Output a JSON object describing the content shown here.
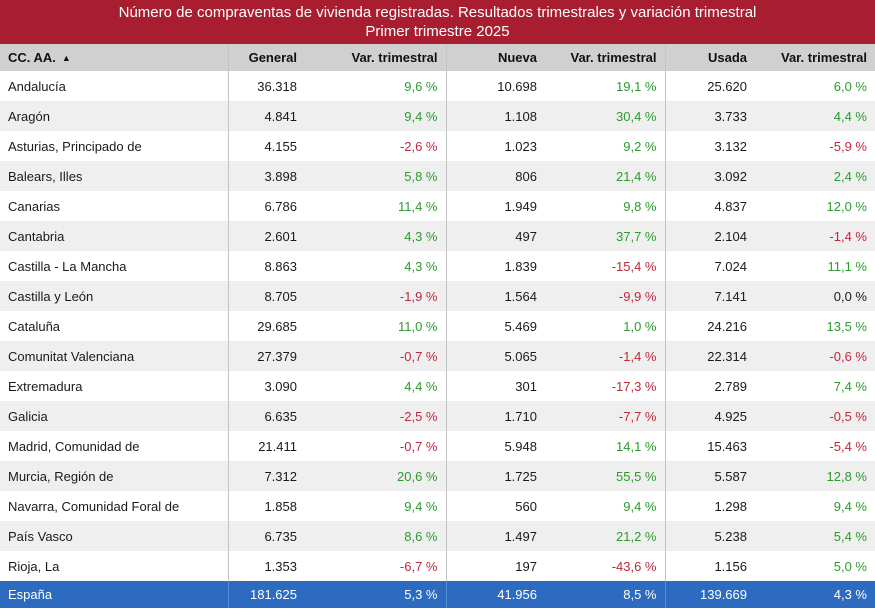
{
  "title": {
    "line1": "Número de compraventas de vivienda registradas. Resultados trimestrales  y variación trimestral",
    "line2": "Primer trimestre 2025"
  },
  "header": {
    "region": "CC. AA.",
    "general": "General",
    "var1": "Var. trimestral",
    "nueva": "Nueva",
    "var2": "Var. trimestral",
    "usada": "Usada",
    "var3": "Var. trimestral"
  },
  "rows": [
    {
      "region": "Andalucía",
      "general": "36.318",
      "var_general": "9,6 %",
      "nueva": "10.698",
      "var_nueva": "19,1 %",
      "usada": "25.620",
      "var_usada": "6,0 %"
    },
    {
      "region": "Aragón",
      "general": "4.841",
      "var_general": "9,4 %",
      "nueva": "1.108",
      "var_nueva": "30,4 %",
      "usada": "3.733",
      "var_usada": "4,4 %"
    },
    {
      "region": "Asturias, Principado de",
      "general": "4.155",
      "var_general": "-2,6 %",
      "nueva": "1.023",
      "var_nueva": "9,2 %",
      "usada": "3.132",
      "var_usada": "-5,9 %"
    },
    {
      "region": "Balears, Illes",
      "general": "3.898",
      "var_general": "5,8 %",
      "nueva": "806",
      "var_nueva": "21,4 %",
      "usada": "3.092",
      "var_usada": "2,4 %"
    },
    {
      "region": "Canarias",
      "general": "6.786",
      "var_general": "11,4 %",
      "nueva": "1.949",
      "var_nueva": "9,8 %",
      "usada": "4.837",
      "var_usada": "12,0 %"
    },
    {
      "region": "Cantabria",
      "general": "2.601",
      "var_general": "4,3 %",
      "nueva": "497",
      "var_nueva": "37,7 %",
      "usada": "2.104",
      "var_usada": "-1,4 %"
    },
    {
      "region": "Castilla - La Mancha",
      "general": "8.863",
      "var_general": "4,3 %",
      "nueva": "1.839",
      "var_nueva": "-15,4 %",
      "usada": "7.024",
      "var_usada": "11,1 %"
    },
    {
      "region": "Castilla y León",
      "general": "8.705",
      "var_general": "-1,9 %",
      "nueva": "1.564",
      "var_nueva": "-9,9 %",
      "usada": "7.141",
      "var_usada": "0,0 %"
    },
    {
      "region": "Cataluña",
      "general": "29.685",
      "var_general": "11,0 %",
      "nueva": "5.469",
      "var_nueva": "1,0 %",
      "usada": "24.216",
      "var_usada": "13,5 %"
    },
    {
      "region": "Comunitat Valenciana",
      "general": "27.379",
      "var_general": "-0,7 %",
      "nueva": "5.065",
      "var_nueva": "-1,4 %",
      "usada": "22.314",
      "var_usada": "-0,6 %"
    },
    {
      "region": "Extremadura",
      "general": "3.090",
      "var_general": "4,4 %",
      "nueva": "301",
      "var_nueva": "-17,3 %",
      "usada": "2.789",
      "var_usada": "7,4 %"
    },
    {
      "region": "Galicia",
      "general": "6.635",
      "var_general": "-2,5 %",
      "nueva": "1.710",
      "var_nueva": "-7,7 %",
      "usada": "4.925",
      "var_usada": "-0,5 %"
    },
    {
      "region": "Madrid, Comunidad de",
      "general": "21.411",
      "var_general": "-0,7 %",
      "nueva": "5.948",
      "var_nueva": "14,1 %",
      "usada": "15.463",
      "var_usada": "-5,4 %"
    },
    {
      "region": "Murcia, Región de",
      "general": "7.312",
      "var_general": "20,6 %",
      "nueva": "1.725",
      "var_nueva": "55,5 %",
      "usada": "5.587",
      "var_usada": "12,8 %"
    },
    {
      "region": "Navarra, Comunidad Foral de",
      "general": "1.858",
      "var_general": "9,4 %",
      "nueva": "560",
      "var_nueva": "9,4 %",
      "usada": "1.298",
      "var_usada": "9,4 %"
    },
    {
      "region": "País Vasco",
      "general": "6.735",
      "var_general": "8,6 %",
      "nueva": "1.497",
      "var_nueva": "21,2 %",
      "usada": "5.238",
      "var_usada": "5,4 %"
    },
    {
      "region": "Rioja, La",
      "general": "1.353",
      "var_general": "-6,7 %",
      "nueva": "197",
      "var_nueva": "-43,6 %",
      "usada": "1.156",
      "var_usada": "5,0 %"
    }
  ],
  "total": {
    "region": "España",
    "general": "181.625",
    "var_general": "5,3 %",
    "nueva": "41.956",
    "var_nueva": "8,5 %",
    "usada": "139.669",
    "var_usada": "4,3 %"
  },
  "colors": {
    "title_bg": "#a81e30",
    "positive": "#2d9b2d",
    "negative": "#c0283c",
    "total_bg": "#2c6bbf"
  },
  "icons": {
    "sort": "sort-ascending-icon"
  }
}
